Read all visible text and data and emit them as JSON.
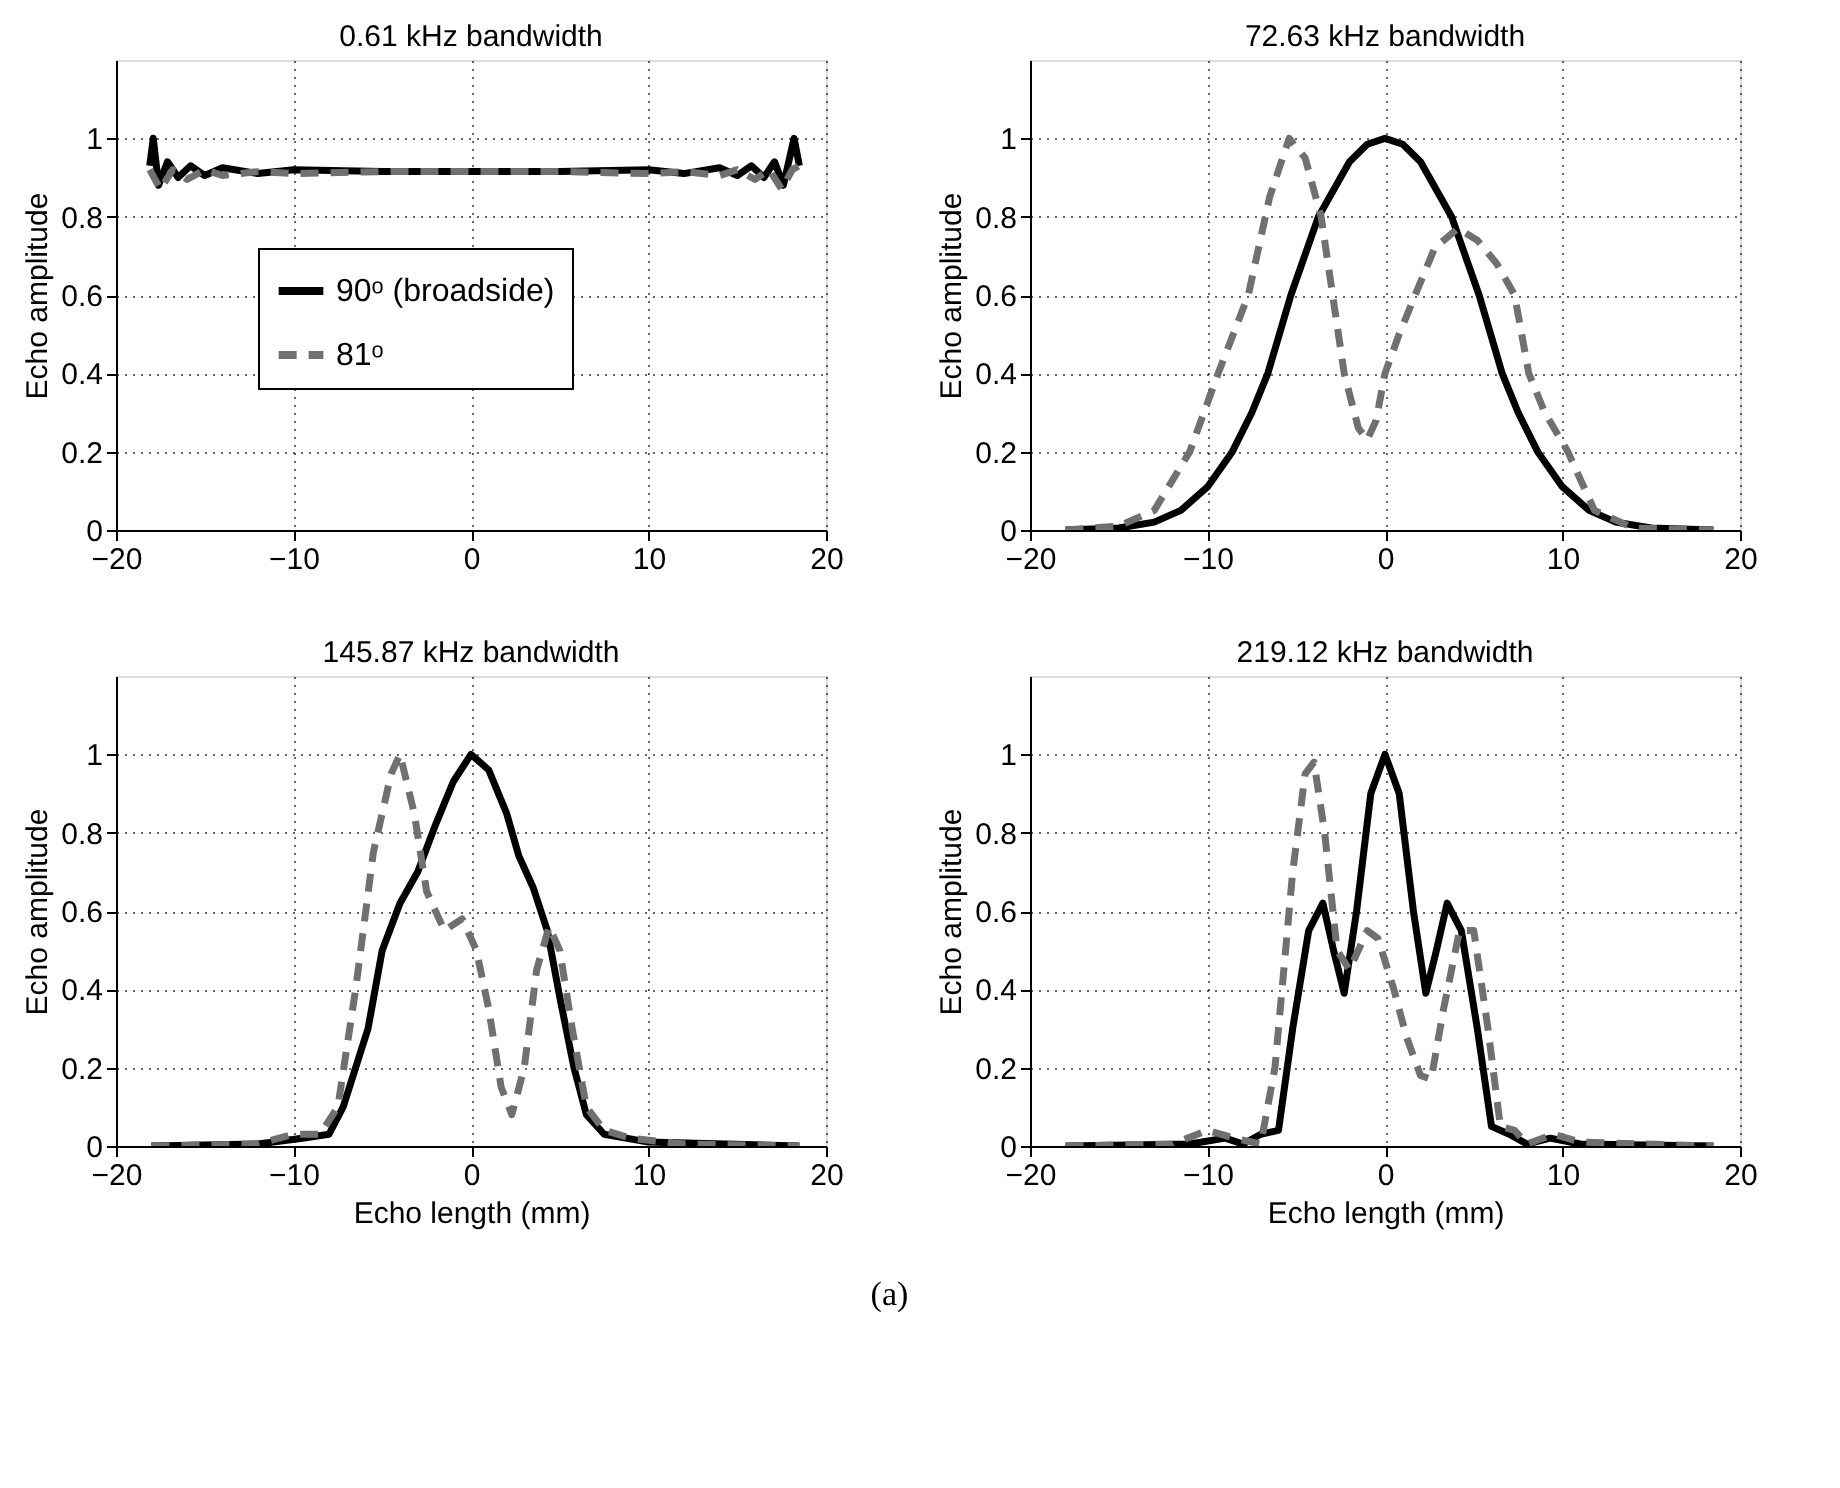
{
  "chart_data": [
    {
      "type": "line",
      "title": "0.61 kHz  bandwidth",
      "ylabel": "Echo amplitude",
      "xlim": [
        -20,
        20
      ],
      "xticks": [
        -20,
        -10,
        0,
        10,
        20
      ],
      "ylim": [
        0,
        1.2
      ],
      "yticks": [
        0,
        0.2,
        0.4,
        0.6,
        0.8,
        1
      ],
      "grid": true,
      "legend": "center",
      "series": [
        {
          "name": "90ᵒ (broadside)",
          "color": "#000000",
          "line_style": "solid",
          "x": [
            -18.1,
            -17.9,
            -17.6,
            -17.1,
            -16.5,
            -15.8,
            -15,
            -14,
            -12,
            -10,
            -5,
            0,
            5,
            10,
            12,
            14,
            15,
            15.8,
            16.5,
            17.1,
            17.6,
            18.2,
            18.5
          ],
          "values": [
            0.93,
            1.0,
            0.88,
            0.94,
            0.9,
            0.93,
            0.905,
            0.925,
            0.91,
            0.92,
            0.915,
            0.915,
            0.915,
            0.92,
            0.91,
            0.925,
            0.905,
            0.93,
            0.9,
            0.94,
            0.88,
            1.0,
            0.93
          ]
        },
        {
          "name": "81ᵒ",
          "color": "#707070",
          "line_style": "dashed",
          "x": [
            -18.1,
            -17.5,
            -16.8,
            -16,
            -15,
            -14,
            -12,
            -10,
            -5,
            0,
            5,
            10,
            12,
            14,
            15,
            16,
            16.8,
            17.5,
            18.1,
            18.5
          ],
          "values": [
            0.92,
            0.87,
            0.92,
            0.895,
            0.92,
            0.905,
            0.915,
            0.91,
            0.915,
            0.915,
            0.915,
            0.91,
            0.915,
            0.905,
            0.92,
            0.895,
            0.92,
            0.87,
            0.92,
            0.93
          ]
        }
      ]
    },
    {
      "type": "line",
      "title": "72.63 kHz  bandwidth",
      "ylabel": "Echo amplitude",
      "xlim": [
        -20,
        20
      ],
      "xticks": [
        -20,
        -10,
        0,
        10,
        20
      ],
      "ylim": [
        0,
        1.2
      ],
      "yticks": [
        0,
        0.2,
        0.4,
        0.6,
        0.8,
        1
      ],
      "grid": true,
      "series": [
        {
          "color": "#000000",
          "line_style": "solid",
          "x": [
            -18,
            -15,
            -13,
            -11.5,
            -10,
            -8.6,
            -7.5,
            -6.6,
            -5.3,
            -3.75,
            -2,
            -1,
            0,
            1,
            2,
            3.75,
            5.3,
            6.6,
            7.5,
            8.6,
            10,
            11.5,
            13,
            15,
            18.5
          ],
          "values": [
            0,
            0.005,
            0.02,
            0.05,
            0.11,
            0.2,
            0.3,
            0.4,
            0.6,
            0.8,
            0.94,
            0.985,
            1,
            0.985,
            0.94,
            0.8,
            0.6,
            0.4,
            0.3,
            0.2,
            0.11,
            0.05,
            0.02,
            0.005,
            0
          ]
        },
        {
          "color": "#707070",
          "line_style": "dashed",
          "x": [
            -18,
            -15,
            -13,
            -11,
            -9.4,
            -7.7,
            -6.5,
            -5.4,
            -4.5,
            -3.6,
            -2.3,
            -1.5,
            -1,
            -0.5,
            0,
            0.8,
            1.7,
            2.8,
            4.1,
            5.2,
            6.3,
            7.3,
            8.1,
            9,
            10.3,
            11.8,
            14,
            18.5
          ],
          "values": [
            0,
            0.01,
            0.05,
            0.2,
            0.4,
            0.6,
            0.85,
            1.0,
            0.95,
            0.8,
            0.4,
            0.26,
            0.23,
            0.28,
            0.4,
            0.5,
            0.6,
            0.72,
            0.77,
            0.74,
            0.68,
            0.6,
            0.4,
            0.3,
            0.2,
            0.05,
            0.005,
            0
          ]
        }
      ]
    },
    {
      "type": "line",
      "title": "145.87 kHz  bandwidth",
      "xlabel": "Echo length (mm)",
      "ylabel": "Echo amplitude",
      "xlim": [
        -20,
        20
      ],
      "xticks": [
        -20,
        -10,
        0,
        10,
        20
      ],
      "ylim": [
        0,
        1.2
      ],
      "yticks": [
        0,
        0.2,
        0.4,
        0.6,
        0.8,
        1
      ],
      "grid": true,
      "series": [
        {
          "color": "#000000",
          "line_style": "solid",
          "x": [
            -18,
            -12,
            -9.5,
            -8,
            -7.2,
            -5.8,
            -5,
            -4,
            -3,
            -2,
            -1,
            0,
            1,
            2,
            2.7,
            3.5,
            4.3,
            5,
            5.8,
            6.5,
            7.5,
            10,
            18.5
          ],
          "values": [
            0,
            0.005,
            0.02,
            0.03,
            0.1,
            0.3,
            0.5,
            0.62,
            0.7,
            0.82,
            0.93,
            1,
            0.96,
            0.85,
            0.74,
            0.66,
            0.55,
            0.38,
            0.2,
            0.08,
            0.03,
            0.01,
            0
          ]
        },
        {
          "color": "#707070",
          "line_style": "dashed",
          "x": [
            -18,
            -12,
            -10,
            -8.5,
            -7.5,
            -6.5,
            -5.5,
            -4.5,
            -4,
            -3.2,
            -2.5,
            -1.5,
            -0.5,
            0.3,
            1,
            1.7,
            2.3,
            3,
            3.7,
            4.4,
            5,
            5.7,
            6.5,
            7.5,
            9,
            12,
            18.5
          ],
          "values": [
            0,
            0.005,
            0.03,
            0.03,
            0.1,
            0.4,
            0.75,
            0.95,
            1.0,
            0.85,
            0.65,
            0.55,
            0.58,
            0.5,
            0.35,
            0.15,
            0.08,
            0.2,
            0.45,
            0.56,
            0.5,
            0.3,
            0.1,
            0.04,
            0.02,
            0.005,
            0
          ]
        }
      ]
    },
    {
      "type": "line",
      "title": "219.12 kHz  bandwidth",
      "xlabel": "Echo length (mm)",
      "ylabel": "Echo amplitude",
      "xlim": [
        -20,
        20
      ],
      "xticks": [
        -20,
        -10,
        0,
        10,
        20
      ],
      "ylim": [
        0,
        1.2
      ],
      "yticks": [
        0,
        0.2,
        0.4,
        0.6,
        0.8,
        1
      ],
      "grid": true,
      "annotations": [
        "(a)"
      ],
      "series": [
        {
          "color": "#000000",
          "line_style": "solid",
          "x": [
            -18,
            -11,
            -9,
            -8,
            -7,
            -6,
            -5.2,
            -4.3,
            -3.5,
            -2.9,
            -2.3,
            -1.6,
            -0.8,
            0,
            0.8,
            1.6,
            2.3,
            2.9,
            3.5,
            4.3,
            5.2,
            6,
            7,
            8,
            9.3,
            11,
            18.5
          ],
          "values": [
            0,
            0.005,
            0.02,
            0.005,
            0.03,
            0.04,
            0.3,
            0.55,
            0.62,
            0.5,
            0.39,
            0.6,
            0.9,
            1.0,
            0.9,
            0.6,
            0.39,
            0.5,
            0.62,
            0.55,
            0.3,
            0.05,
            0.03,
            0.005,
            0.02,
            0.005,
            0
          ]
        },
        {
          "color": "#707070",
          "line_style": "dashed",
          "x": [
            -18,
            -12,
            -10,
            -8.5,
            -7,
            -6.2,
            -5.2,
            -4.5,
            -4,
            -3.4,
            -2.7,
            -2,
            -1,
            -0.4,
            0.5,
            1.2,
            2,
            2.6,
            3.3,
            4.2,
            5,
            5.8,
            6.5,
            7.3,
            8,
            9.5,
            11,
            18.5
          ],
          "values": [
            0,
            0.005,
            0.04,
            0.02,
            0.005,
            0.2,
            0.7,
            0.95,
            0.98,
            0.8,
            0.5,
            0.45,
            0.55,
            0.53,
            0.4,
            0.28,
            0.18,
            0.17,
            0.35,
            0.55,
            0.55,
            0.3,
            0.05,
            0.04,
            0.005,
            0.03,
            0.01,
            0
          ]
        }
      ]
    }
  ]
}
